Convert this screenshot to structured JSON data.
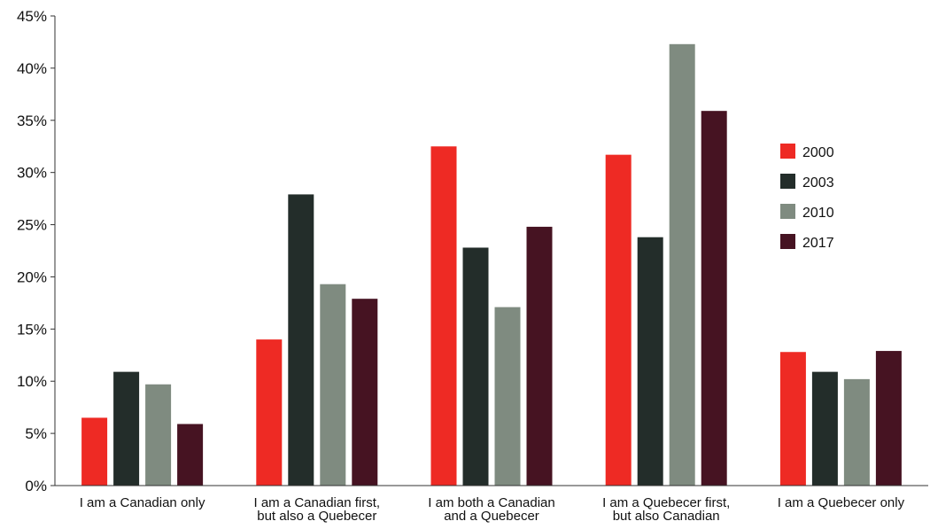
{
  "chart_data": {
    "type": "bar",
    "title": "",
    "xlabel": "",
    "ylabel": "",
    "categories": [
      [
        "I am a Canadian only"
      ],
      [
        "I am a Canadian first,",
        "but also a Quebecer"
      ],
      [
        "I am both a Canadian",
        "and a Quebecer"
      ],
      [
        "I am a Quebecer first,",
        "but also Canadian"
      ],
      [
        "I am a Quebecer only"
      ]
    ],
    "series": [
      {
        "name": "2000",
        "color": "#ee2a24",
        "values": [
          6.5,
          14.0,
          32.5,
          31.7,
          12.8
        ]
      },
      {
        "name": "2003",
        "color": "#232d2a",
        "values": [
          10.9,
          27.9,
          22.8,
          23.8,
          10.9
        ]
      },
      {
        "name": "2010",
        "color": "#7f8b80",
        "values": [
          9.7,
          19.3,
          17.1,
          42.3,
          10.2
        ]
      },
      {
        "name": "2017",
        "color": "#461322",
        "values": [
          5.9,
          17.9,
          24.8,
          35.9,
          12.9
        ]
      }
    ],
    "ylim": [
      0,
      45
    ],
    "yticks": [
      0,
      5,
      10,
      15,
      20,
      25,
      30,
      35,
      40,
      45
    ],
    "ytick_labels": [
      "0%",
      "5%",
      "10%",
      "15%",
      "20%",
      "25%",
      "30%",
      "35%",
      "40%",
      "45%"
    ],
    "legend_position": "right",
    "grid": false
  }
}
